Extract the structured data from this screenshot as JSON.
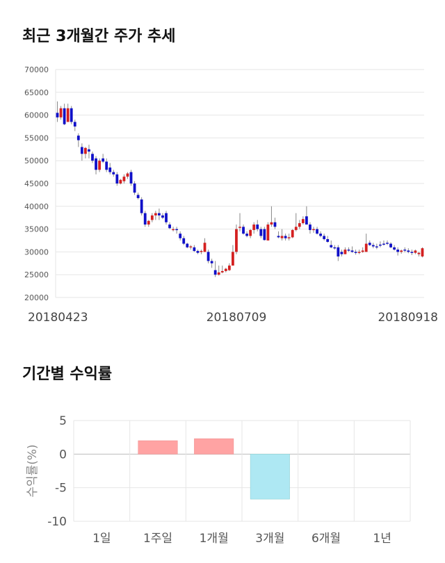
{
  "section1": {
    "title": "최근 3개월간 주가 추세"
  },
  "section2": {
    "title": "기간별 수익률"
  },
  "chart_data": [
    {
      "type": "candlestick",
      "ylim": [
        20000,
        70000
      ],
      "yticks": [
        "70000",
        "65000",
        "60000",
        "55000",
        "50000",
        "45000",
        "40000",
        "35000",
        "30000",
        "25000",
        "20000"
      ],
      "x_tick_labels": [
        "20180423",
        "20180709",
        "20180918"
      ],
      "grid": true,
      "up_color": "#d42020",
      "down_color": "#1010c8",
      "candles": [
        [
          60500,
          63000,
          58500,
          59500
        ],
        [
          59500,
          62000,
          59000,
          61500
        ],
        [
          61500,
          62500,
          57800,
          58000
        ],
        [
          58500,
          62500,
          58500,
          61500
        ],
        [
          61500,
          62000,
          58000,
          58500
        ],
        [
          58500,
          59000,
          56500,
          57500
        ],
        [
          55500,
          56000,
          53000,
          54500
        ],
        [
          53000,
          53800,
          50000,
          51500
        ],
        [
          51500,
          53000,
          50500,
          52800
        ],
        [
          52500,
          53500,
          50500,
          52000
        ],
        [
          51500,
          52000,
          49500,
          50000
        ],
        [
          50500,
          51000,
          47000,
          48000
        ],
        [
          48000,
          50500,
          47500,
          50000
        ],
        [
          50500,
          51500,
          49500,
          49800
        ],
        [
          49800,
          50500,
          47500,
          48000
        ],
        [
          48500,
          49500,
          47000,
          47500
        ],
        [
          47500,
          48000,
          46500,
          47000
        ],
        [
          47000,
          47500,
          44500,
          45000
        ],
        [
          45000,
          46000,
          44800,
          45800
        ],
        [
          45500,
          47000,
          45000,
          46500
        ],
        [
          46500,
          47500,
          46000,
          47200
        ],
        [
          47500,
          48000,
          44500,
          45000
        ],
        [
          45000,
          45500,
          42500,
          43000
        ],
        [
          42500,
          43000,
          41500,
          41800
        ],
        [
          41500,
          42000,
          38000,
          38500
        ],
        [
          38500,
          39000,
          35500,
          36000
        ],
        [
          36000,
          37000,
          35500,
          36800
        ],
        [
          37000,
          38500,
          36500,
          38000
        ],
        [
          38000,
          39000,
          37000,
          38500
        ],
        [
          38500,
          39500,
          37000,
          38000
        ],
        [
          38000,
          38500,
          37200,
          37500
        ],
        [
          38500,
          39000,
          36000,
          36500
        ],
        [
          36000,
          36500,
          35000,
          35200
        ],
        [
          35000,
          35500,
          34500,
          35000
        ],
        [
          35000,
          35500,
          34000,
          34800
        ],
        [
          34000,
          34500,
          32500,
          33000
        ],
        [
          33000,
          33500,
          31500,
          31800
        ],
        [
          31800,
          32000,
          30800,
          31000
        ],
        [
          31000,
          31500,
          30500,
          31200
        ],
        [
          31000,
          31500,
          30000,
          30200
        ],
        [
          30200,
          30500,
          29500,
          29800
        ],
        [
          30000,
          30500,
          29500,
          30200
        ],
        [
          30000,
          33000,
          30000,
          32000
        ],
        [
          30000,
          30500,
          27500,
          28000
        ],
        [
          28000,
          28500,
          26500,
          27500
        ],
        [
          26000,
          28000,
          24500,
          25000
        ],
        [
          25000,
          27000,
          24800,
          25500
        ],
        [
          25500,
          27000,
          25300,
          25800
        ],
        [
          25800,
          26500,
          25500,
          26300
        ],
        [
          26000,
          27500,
          25800,
          27000
        ],
        [
          27000,
          31500,
          27000,
          30000
        ],
        [
          30000,
          36000,
          29500,
          35000
        ],
        [
          35500,
          38500,
          34500,
          35500
        ],
        [
          35500,
          36000,
          33800,
          34000
        ],
        [
          34000,
          34500,
          33200,
          33500
        ],
        [
          33500,
          35000,
          33000,
          34800
        ],
        [
          34800,
          36500,
          34000,
          36000
        ],
        [
          36000,
          37000,
          34500,
          35000
        ],
        [
          35000,
          35500,
          33000,
          33500
        ],
        [
          35000,
          35500,
          32500,
          32600
        ],
        [
          32500,
          36500,
          32500,
          36000
        ],
        [
          36000,
          40000,
          35500,
          36500
        ],
        [
          36500,
          37500,
          35000,
          35500
        ],
        [
          33500,
          34500,
          33000,
          33200
        ],
        [
          33000,
          35000,
          32500,
          33500
        ],
        [
          33500,
          34000,
          32500,
          33000
        ],
        [
          33000,
          34000,
          32500,
          33200
        ],
        [
          33200,
          35000,
          33000,
          34800
        ],
        [
          34800,
          38500,
          34500,
          35500
        ],
        [
          35500,
          37000,
          35000,
          36300
        ],
        [
          36300,
          37800,
          36000,
          37200
        ],
        [
          37800,
          40000,
          36000,
          36000
        ],
        [
          36000,
          36500,
          34000,
          34800
        ],
        [
          34800,
          35500,
          34200,
          35000
        ],
        [
          35000,
          35500,
          33800,
          34000
        ],
        [
          34000,
          34500,
          33200,
          33500
        ],
        [
          33500,
          34000,
          32500,
          32800
        ],
        [
          32800,
          33500,
          32000,
          32200
        ],
        [
          31500,
          32500,
          30800,
          31000
        ],
        [
          31000,
          31500,
          30500,
          30800
        ],
        [
          31000,
          31500,
          28000,
          29000
        ],
        [
          30000,
          30500,
          29000,
          29500
        ],
        [
          29500,
          31000,
          29500,
          30500
        ],
        [
          30500,
          31000,
          30000,
          30300
        ],
        [
          30300,
          31200,
          29800,
          30000
        ],
        [
          30000,
          30500,
          29400,
          29800
        ],
        [
          29800,
          30500,
          29500,
          30000
        ],
        [
          30000,
          31000,
          29800,
          30300
        ],
        [
          30000,
          34000,
          30000,
          31800
        ],
        [
          32000,
          32500,
          31300,
          31500
        ],
        [
          31500,
          32000,
          30800,
          31200
        ],
        [
          31200,
          31800,
          30600,
          31000
        ],
        [
          31600,
          32300,
          31000,
          31500
        ],
        [
          31800,
          32500,
          31400,
          31600
        ],
        [
          32000,
          32500,
          31500,
          31800
        ],
        [
          31800,
          32100,
          30800,
          31000
        ],
        [
          31000,
          31500,
          30300,
          30500
        ],
        [
          30500,
          31000,
          29200,
          30000
        ],
        [
          30000,
          30500,
          29600,
          30300
        ],
        [
          30500,
          31000,
          29900,
          30300
        ],
        [
          30300,
          30800,
          29700,
          30000
        ],
        [
          30000,
          30500,
          29300,
          29800
        ],
        [
          29800,
          30500,
          29500,
          30300
        ],
        [
          29500,
          30000,
          29000,
          29800
        ],
        [
          29000,
          31000,
          28800,
          30800
        ]
      ]
    },
    {
      "type": "bar",
      "categories": [
        "1일",
        "1주일",
        "1개월",
        "3개월",
        "6개월",
        "1년"
      ],
      "values": [
        null,
        2.0,
        2.3,
        -6.7,
        null,
        null
      ],
      "ylim": [
        -10,
        5
      ],
      "yticks": [
        "5",
        "0",
        "-5",
        "-10"
      ],
      "ylabel": "수익률(%)",
      "positive_color": "#ffa3a3",
      "negative_color": "#aee8f3",
      "grid": true
    }
  ]
}
